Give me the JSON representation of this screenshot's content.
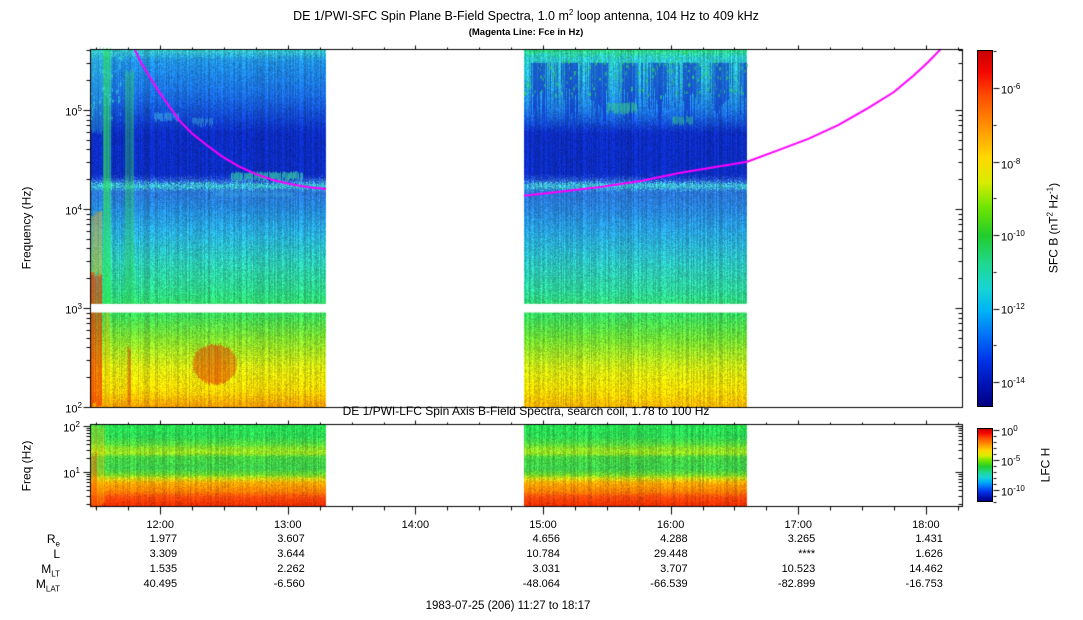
{
  "header": {
    "title_pre": "DE 1/PWI-SFC  Spin Plane B-Field Spectra, 1.0 m",
    "title_sup": "2",
    "title_post": " loop antenna, 104 Hz to 409 kHz",
    "subtitle": "(Magenta Line: Fce in Hz)"
  },
  "footer": {
    "date_range": "1983-07-25 (206) 11:27 to 18:17"
  },
  "chart_data": {
    "type": "heatmap",
    "time_axis": {
      "start": "11:27",
      "end": "18:17",
      "minor_tick_minutes": 15,
      "hours": [
        {
          "label": "12:00"
        },
        {
          "label": "13:00"
        },
        {
          "label": "14:00"
        },
        {
          "label": "15:00"
        },
        {
          "label": "16:00"
        },
        {
          "label": "17:00"
        },
        {
          "label": "18:00"
        }
      ]
    },
    "sfc_panel": {
      "ylabel": "Frequency (Hz)",
      "freq_min_hz": 104,
      "freq_max_hz": 409000,
      "gap_hz": [
        900,
        1100
      ],
      "yticks": [
        {
          "base": "10",
          "exp": "5"
        },
        {
          "base": "10",
          "exp": "4"
        },
        {
          "base": "10",
          "exp": "3"
        },
        {
          "base": "10",
          "exp": "2"
        }
      ],
      "segments": [
        {
          "t_start": "11:27",
          "t_end": "13:18",
          "stops": [
            [
              409000,
              "#38c8c8"
            ],
            [
              320000,
              "#2090e0"
            ],
            [
              150000,
              "#1a6ee0"
            ],
            [
              60000,
              "#0c2cc0"
            ],
            [
              22000,
              "#0c2cc0"
            ],
            [
              19000,
              "#2f66d8"
            ],
            [
              17500,
              "#40dcd0"
            ],
            [
              15500,
              "#2a72d4"
            ],
            [
              10000,
              "#2488d8"
            ],
            [
              6000,
              "#28aadc"
            ],
            [
              3000,
              "#2cc8b4"
            ],
            [
              1500,
              "#2ed488"
            ],
            [
              1100,
              "#30d86a"
            ],
            [
              900,
              "#34d85c"
            ],
            [
              500,
              "#7ede2e"
            ],
            [
              250,
              "#d8e410"
            ],
            [
              150,
              "#f4d400"
            ],
            [
              104,
              "#f89c00"
            ]
          ],
          "features": [
            {
              "kind": "edge",
              "t0": 0,
              "t1": 5.5,
              "f0": 104,
              "f1": 2200,
              "color": "#f23000",
              "alpha": 0.8
            },
            {
              "kind": "edge",
              "t0": 0,
              "t1": 5.5,
              "f0": 2200,
              "f1": 9000,
              "color": "#ffaa00",
              "alpha": 0.55
            },
            {
              "kind": "edge",
              "t0": 0,
              "t1": 6,
              "f0": 60000,
              "f1": 409000,
              "color": "#38d0c8",
              "alpha": 0.35
            },
            {
              "kind": "streak",
              "t0": 6,
              "t1": 10,
              "f0": 1100,
              "f1": 409000,
              "color": "#30e858",
              "alpha": 0.75
            },
            {
              "kind": "streak",
              "t0": 6.5,
              "t1": 9.5,
              "f0": 104,
              "f1": 900,
              "color": "#e0b400",
              "alpha": 0.45
            },
            {
              "kind": "streak",
              "t0": 16.5,
              "t1": 20.5,
              "f0": 1100,
              "f1": 250000,
              "color": "#2cd456",
              "alpha": 0.5
            },
            {
              "kind": "streak",
              "t0": 17.5,
              "t1": 19.5,
              "f0": 110,
              "f1": 400,
              "color": "#cc2400",
              "alpha": 0.45
            },
            {
              "kind": "blob",
              "t0": 48,
              "t1": 69,
              "f0": 170,
              "f1": 430,
              "color": "#e03000",
              "alpha": 0.65
            },
            {
              "kind": "dash",
              "t0": 66,
              "t1": 100,
              "f0": 19500,
              "f1": 23500,
              "color": "#38e0a0",
              "alpha": 0.7
            },
            {
              "kind": "dash",
              "t0": 30,
              "t1": 42,
              "f0": 78000,
              "f1": 93000,
              "color": "#44c2ec",
              "alpha": 0.55
            },
            {
              "kind": "dash",
              "t0": 48,
              "t1": 58,
              "f0": 70000,
              "f1": 83000,
              "color": "#44c2ec",
              "alpha": 0.45
            },
            {
              "kind": "dash",
              "t0": 58,
              "t1": 96,
              "f0": 13200,
              "f1": 14800,
              "color": "#3cb4e4",
              "alpha": 0.4
            },
            {
              "kind": "speckle",
              "t0": 0,
              "t1": 16,
              "f0": 80000,
              "f1": 409000,
              "color": "#38d8d0",
              "alpha": 0.7,
              "density": 0.12
            }
          ]
        },
        {
          "t_start": "14:51",
          "t_end": "16:36",
          "stops": [
            [
              409000,
              "#30d878"
            ],
            [
              350000,
              "#2cc8c8"
            ],
            [
              200000,
              "#28b0d8"
            ],
            [
              100000,
              "#1c78e0"
            ],
            [
              60000,
              "#0c2cc0"
            ],
            [
              22000,
              "#0c2cc0"
            ],
            [
              19000,
              "#2f66d8"
            ],
            [
              17500,
              "#44dcd4"
            ],
            [
              15500,
              "#2a72d4"
            ],
            [
              10000,
              "#2782d8"
            ],
            [
              6000,
              "#28a0dc"
            ],
            [
              3000,
              "#2cc0c0"
            ],
            [
              1500,
              "#2ed096"
            ],
            [
              1100,
              "#30d678"
            ],
            [
              900,
              "#32d862"
            ],
            [
              500,
              "#6cdc34"
            ],
            [
              250,
              "#cce214"
            ],
            [
              150,
              "#f0d800"
            ],
            [
              104,
              "#f8b400"
            ]
          ],
          "features": [
            {
              "kind": "curtains",
              "t0": 204,
              "t1": 309,
              "f0": 55000,
              "f1": 300000,
              "color": "#1134c8",
              "alpha": 0.7
            },
            {
              "kind": "speckle",
              "t0": 204,
              "t1": 309,
              "f0": 140000,
              "f1": 400000,
              "color": "#2ed464",
              "alpha": 0.75,
              "density": 0.1
            },
            {
              "kind": "dash",
              "t0": 243,
              "t1": 257,
              "f0": 95000,
              "f1": 118000,
              "color": "#36d87c",
              "alpha": 0.6
            },
            {
              "kind": "dash",
              "t0": 273,
              "t1": 284,
              "f0": 72000,
              "f1": 86000,
              "color": "#36d87c",
              "alpha": 0.5
            }
          ]
        }
      ],
      "fce_line": {
        "color": "#ff00ff",
        "branch1_min_hz": [
          [
            21,
            410000
          ],
          [
            24,
            300000
          ],
          [
            28,
            218000
          ],
          [
            32,
            158000
          ],
          [
            37,
            111000
          ],
          [
            42,
            78000
          ],
          [
            48,
            58000
          ],
          [
            55,
            44000
          ],
          [
            62,
            34000
          ],
          [
            70,
            27000
          ],
          [
            78,
            22500
          ],
          [
            86,
            19600
          ],
          [
            94,
            17900
          ],
          [
            102,
            16700
          ],
          [
            111,
            15900
          ]
        ],
        "branch2_min_hz": [
          [
            204,
            13600
          ],
          [
            221,
            14900
          ],
          [
            240,
            16700
          ],
          [
            259,
            19200
          ],
          [
            277,
            23100
          ],
          [
            292,
            26100
          ],
          [
            309,
            30000
          ],
          [
            324,
            39600
          ],
          [
            338,
            51300
          ],
          [
            352,
            70900
          ],
          [
            366,
            105000
          ],
          [
            378,
            152000
          ],
          [
            387,
            221000
          ],
          [
            394,
            304000
          ],
          [
            400,
            412000
          ]
        ]
      },
      "colorbar": {
        "label_pre": "SFC B (nT",
        "label_sup1": "2",
        "label_mid": " Hz",
        "label_sup2": "-1",
        "label_post": ")",
        "ticks": [
          {
            "base": "10",
            "exp": "-6"
          },
          {
            "base": "10",
            "exp": "-8"
          },
          {
            "base": "10",
            "exp": "-10"
          },
          {
            "base": "10",
            "exp": "-12"
          },
          {
            "base": "10",
            "exp": "-14"
          }
        ],
        "gradient": [
          [
            0,
            "#c80000"
          ],
          [
            0.06,
            "#f40800"
          ],
          [
            0.13,
            "#ff5000"
          ],
          [
            0.22,
            "#ff9800"
          ],
          [
            0.3,
            "#ffd800"
          ],
          [
            0.37,
            "#d8ec00"
          ],
          [
            0.44,
            "#70e400"
          ],
          [
            0.52,
            "#22cc2c"
          ],
          [
            0.6,
            "#1ed890"
          ],
          [
            0.67,
            "#18d4d4"
          ],
          [
            0.73,
            "#00b4f4"
          ],
          [
            0.8,
            "#0072f8"
          ],
          [
            0.87,
            "#0034e8"
          ],
          [
            0.94,
            "#0012b4"
          ],
          [
            1,
            "#000080"
          ]
        ]
      }
    },
    "lfc_panel": {
      "title": "DE 1/PWI-LFC  Spin Axis B-Field Spectra, search coil, 1.78 to 100 Hz",
      "ylabel": "Freq (Hz)",
      "freq_min_hz": 1.78,
      "freq_max_hz": 100,
      "yticks": [
        {
          "base": "10",
          "exp": "2"
        },
        {
          "base": "10",
          "exp": "1"
        }
      ],
      "segments": [
        {
          "t_start": "11:27",
          "t_end": "13:18",
          "stops": [
            [
              100,
              "#28e050"
            ],
            [
              60,
              "#2cd454"
            ],
            [
              42,
              "#52d83e"
            ],
            [
              32,
              "#8ce026"
            ],
            [
              26,
              "#9ce020"
            ],
            [
              22,
              "#46d040"
            ],
            [
              12,
              "#3ccc4c"
            ],
            [
              8.8,
              "#70d428"
            ],
            [
              7.5,
              "#c8d816"
            ],
            [
              6,
              "#f8a800"
            ],
            [
              3.8,
              "#ff7c00"
            ],
            [
              3,
              "#ff4c0c"
            ],
            [
              2,
              "#f23000"
            ],
            [
              1.78,
              "#ea2800"
            ]
          ],
          "features": [
            {
              "kind": "edge",
              "t0": 0,
              "t1": 7,
              "f0": 1.78,
              "f1": 100,
              "color": "#ffc000",
              "alpha": 0.4
            },
            {
              "kind": "edge",
              "t0": 0,
              "t1": 3.5,
              "f0": 1.78,
              "f1": 25,
              "color": "#ff3800",
              "alpha": 0.45
            }
          ]
        },
        {
          "t_start": "14:51",
          "t_end": "16:36",
          "stops": [
            [
              100,
              "#28e050"
            ],
            [
              60,
              "#2cd454"
            ],
            [
              42,
              "#52d83e"
            ],
            [
              32,
              "#8ce026"
            ],
            [
              26,
              "#9ce020"
            ],
            [
              22,
              "#46d040"
            ],
            [
              12,
              "#3ccc4c"
            ],
            [
              8.8,
              "#70d428"
            ],
            [
              7.5,
              "#c8d816"
            ],
            [
              6,
              "#f8a800"
            ],
            [
              3.8,
              "#ff7c00"
            ],
            [
              3,
              "#ff4c0c"
            ],
            [
              2,
              "#f23000"
            ],
            [
              1.78,
              "#ea2800"
            ]
          ],
          "features": []
        }
      ],
      "colorbar": {
        "label": "LFC H",
        "ticks": [
          {
            "base": "10",
            "exp": "0"
          },
          {
            "base": "10",
            "exp": "-5"
          },
          {
            "base": "10",
            "exp": "-10"
          }
        ],
        "gradient": [
          [
            0,
            "#c80000"
          ],
          [
            0.06,
            "#f40800"
          ],
          [
            0.13,
            "#ff5000"
          ],
          [
            0.22,
            "#ff9800"
          ],
          [
            0.3,
            "#ffd800"
          ],
          [
            0.37,
            "#d8ec00"
          ],
          [
            0.44,
            "#70e400"
          ],
          [
            0.52,
            "#22cc2c"
          ],
          [
            0.6,
            "#1ed890"
          ],
          [
            0.67,
            "#18d4d4"
          ],
          [
            0.73,
            "#00b4f4"
          ],
          [
            0.8,
            "#0072f8"
          ],
          [
            0.87,
            "#0034e8"
          ],
          [
            0.94,
            "#0012b4"
          ],
          [
            1,
            "#000080"
          ]
        ]
      }
    }
  },
  "ephemeris": {
    "row_labels": [
      {
        "base": "R",
        "sub": "e"
      },
      {
        "base": "L",
        "sub": ""
      },
      {
        "base": "M",
        "sub": "LT"
      },
      {
        "base": "M",
        "sub": "LAT"
      }
    ],
    "rows": [
      {
        "name": "Re",
        "values": [
          "1.977",
          "3.607",
          "",
          "4.656",
          "4.288",
          "3.265",
          "1.431"
        ]
      },
      {
        "name": "L",
        "values": [
          "3.309",
          "3.644",
          "",
          "10.784",
          "29.448",
          "****",
          "1.626"
        ]
      },
      {
        "name": "MLT",
        "values": [
          "1.535",
          "2.262",
          "",
          "3.031",
          "3.707",
          "10.523",
          "14.462"
        ]
      },
      {
        "name": "MLAT",
        "values": [
          "40.495",
          "-6.560",
          "",
          "-48.064",
          "-66.539",
          "-82.899",
          "-16.753"
        ]
      }
    ]
  }
}
